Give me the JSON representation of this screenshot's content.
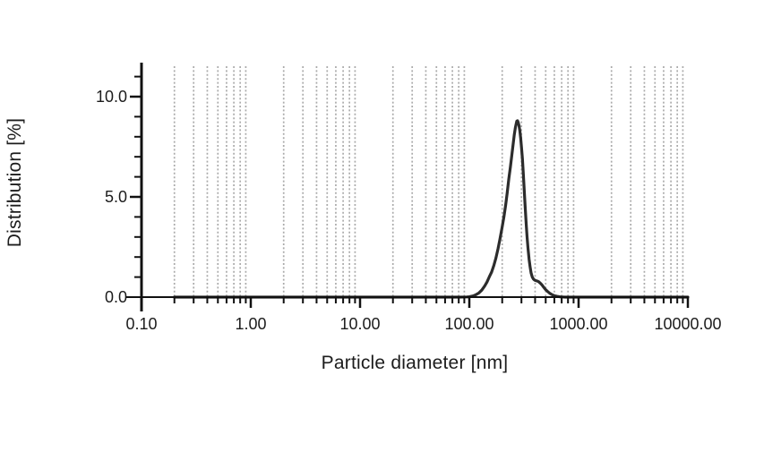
{
  "chart_data": {
    "type": "line",
    "title": "",
    "xlabel": "Particle diameter [nm]",
    "ylabel": "Distribution [%]",
    "x_scale": "log",
    "x_range": [
      0.1,
      10000
    ],
    "y_range": [
      0,
      11.7
    ],
    "grid": "vertical-dotted-minor",
    "legend": "none",
    "x_ticks": [
      {
        "value": 0.1,
        "label": "0.10"
      },
      {
        "value": 1,
        "label": "1.00"
      },
      {
        "value": 10,
        "label": "10.00"
      },
      {
        "value": 100,
        "label": "100.00"
      },
      {
        "value": 1000,
        "label": "1000.00"
      },
      {
        "value": 10000,
        "label": "10000.00"
      }
    ],
    "y_ticks": [
      {
        "value": 0,
        "label": "0.0"
      },
      {
        "value": 5,
        "label": "5.0"
      },
      {
        "value": 10,
        "label": "10.0"
      }
    ],
    "y_minor_tick_step": 1,
    "grid_minor_multiples": [
      2,
      3,
      4,
      5,
      6,
      7,
      8,
      9
    ],
    "grid_decades": [
      0.1,
      1,
      10,
      100,
      1000
    ],
    "colors": {
      "curve": "#2c2c2c",
      "grid": "#aaaaaa",
      "axis": "#111111",
      "text": "#1c1c1c",
      "background": "#ffffff"
    },
    "series": [
      {
        "name": "distribution",
        "points": [
          [
            0.2,
            0
          ],
          [
            0.5,
            0
          ],
          [
            1,
            0
          ],
          [
            2,
            0
          ],
          [
            5,
            0
          ],
          [
            10,
            0
          ],
          [
            20,
            0
          ],
          [
            40,
            0
          ],
          [
            60,
            0
          ],
          [
            80,
            0
          ],
          [
            95,
            0.01
          ],
          [
            100,
            0.02
          ],
          [
            108,
            0.06
          ],
          [
            115,
            0.12
          ],
          [
            122,
            0.2
          ],
          [
            130,
            0.35
          ],
          [
            138,
            0.55
          ],
          [
            145,
            0.75
          ],
          [
            152,
            1.0
          ],
          [
            160,
            1.25
          ],
          [
            168,
            1.6
          ],
          [
            175,
            1.95
          ],
          [
            183,
            2.4
          ],
          [
            190,
            2.85
          ],
          [
            200,
            3.5
          ],
          [
            208,
            4.05
          ],
          [
            215,
            4.6
          ],
          [
            222,
            5.2
          ],
          [
            230,
            5.9
          ],
          [
            238,
            6.5
          ],
          [
            245,
            7.1
          ],
          [
            252,
            7.65
          ],
          [
            258,
            8.1
          ],
          [
            264,
            8.45
          ],
          [
            268,
            8.62
          ],
          [
            272,
            8.78
          ],
          [
            276,
            8.8
          ],
          [
            280,
            8.72
          ],
          [
            285,
            8.55
          ],
          [
            290,
            8.3
          ],
          [
            295,
            7.95
          ],
          [
            300,
            7.5
          ],
          [
            306,
            6.9
          ],
          [
            312,
            6.15
          ],
          [
            318,
            5.35
          ],
          [
            324,
            4.55
          ],
          [
            330,
            3.8
          ],
          [
            337,
            3.05
          ],
          [
            344,
            2.45
          ],
          [
            352,
            1.9
          ],
          [
            360,
            1.5
          ],
          [
            368,
            1.2
          ],
          [
            377,
            1.0
          ],
          [
            386,
            0.9
          ],
          [
            396,
            0.85
          ],
          [
            408,
            0.82
          ],
          [
            420,
            0.8
          ],
          [
            432,
            0.77
          ],
          [
            445,
            0.7
          ],
          [
            460,
            0.62
          ],
          [
            478,
            0.5
          ],
          [
            498,
            0.38
          ],
          [
            520,
            0.28
          ],
          [
            545,
            0.19
          ],
          [
            572,
            0.12
          ],
          [
            600,
            0.07
          ],
          [
            635,
            0.04
          ],
          [
            670,
            0.02
          ],
          [
            710,
            0.01
          ],
          [
            750,
            0
          ],
          [
            900,
            0
          ],
          [
            1500,
            0
          ],
          [
            3000,
            0
          ],
          [
            6000,
            0
          ],
          [
            10000,
            0
          ]
        ]
      }
    ]
  }
}
